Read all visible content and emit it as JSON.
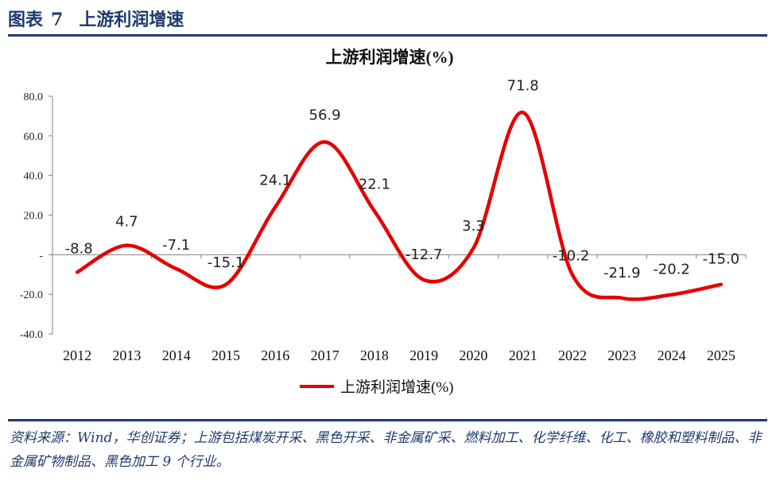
{
  "header": {
    "fig_label": "图表",
    "fig_number": "7",
    "title": "上游利润增速"
  },
  "footer": {
    "source_text": "资料来源：Wind，华创证券；上游包括煤炭开采、黑色开采、非金属矿采、燃料加工、化学纤维、化工、橡胶和塑料制品、非金属矿物制品、黑色加工 9 个行业。"
  },
  "colors": {
    "series": "#e60000",
    "header": "#1f3a6e"
  },
  "chart_data": {
    "type": "line",
    "title": "上游利润增速(%)",
    "categories": [
      "2012",
      "2013",
      "2014",
      "2015",
      "2016",
      "2017",
      "2018",
      "2019",
      "2020",
      "2021",
      "2022",
      "2023",
      "2024",
      "2025"
    ],
    "series": [
      {
        "name": "上游利润增速(%)",
        "values": [
          -8.8,
          4.7,
          -7.1,
          -15.1,
          24.1,
          56.9,
          22.1,
          -12.7,
          3.3,
          71.8,
          -10.2,
          -21.9,
          -20.2,
          -15.0
        ]
      }
    ],
    "data_labels": [
      "-8.8",
      "4.7",
      "-7.1",
      "-15.1",
      "24.1",
      "56.9",
      "22.1",
      "-12.7",
      "3.3",
      "71.8",
      "-10.2",
      "-21.9",
      "-20.2",
      "-15.0"
    ],
    "y_ticks": [
      "80.0",
      "60.0",
      "40.0",
      "20.0",
      "-",
      "-20.0",
      "-40.0"
    ],
    "ylim": [
      -40,
      80
    ],
    "smooth": true,
    "grid": false,
    "legend_position": "bottom"
  }
}
